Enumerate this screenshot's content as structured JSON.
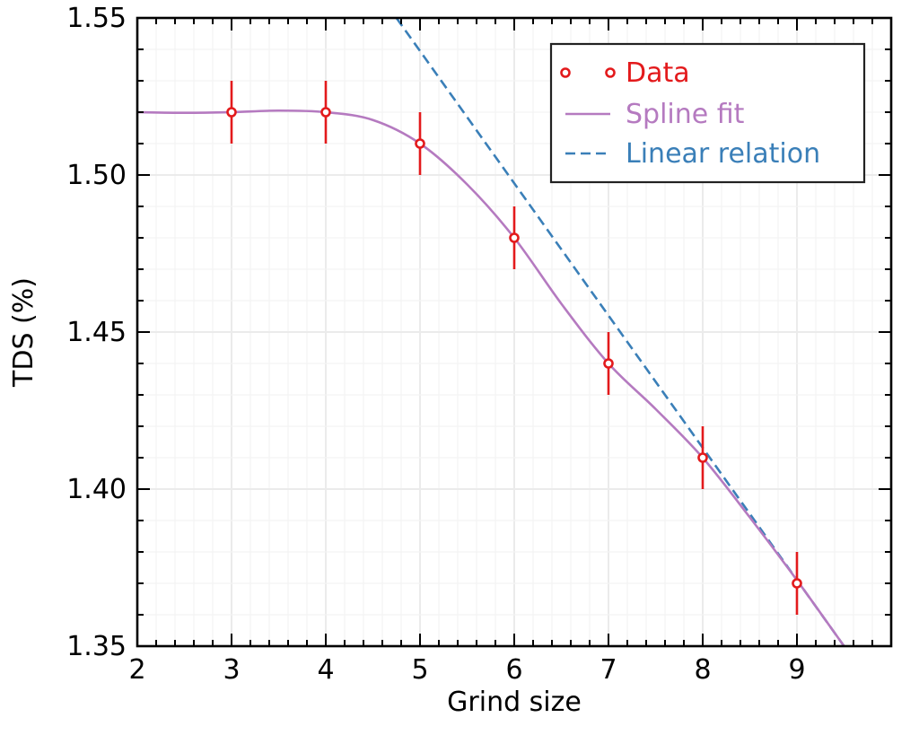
{
  "chart_data": {
    "type": "line",
    "title": "",
    "xlabel": "Grind size",
    "ylabel": "TDS (%)",
    "xlim": [
      2,
      10
    ],
    "ylim": [
      1.35,
      1.55
    ],
    "x_ticks": [
      2,
      3,
      4,
      5,
      6,
      7,
      8,
      9
    ],
    "x_tick_labels": [
      "2",
      "3",
      "4",
      "5",
      "6",
      "7",
      "8",
      "9"
    ],
    "y_ticks": [
      1.35,
      1.4,
      1.45,
      1.5,
      1.55
    ],
    "y_tick_labels": [
      "1.35",
      "1.40",
      "1.45",
      "1.50",
      "1.55"
    ],
    "grid": true,
    "legend_position": "top-right",
    "colors": {
      "data": "#e31a1c",
      "spline": "#b57ac0",
      "linear": "#3a7fb8"
    },
    "series": [
      {
        "name": "Data",
        "kind": "scatter-errorbar",
        "x": [
          3,
          4,
          5,
          6,
          7,
          8,
          9
        ],
        "y": [
          1.52,
          1.52,
          1.51,
          1.48,
          1.44,
          1.41,
          1.37
        ],
        "yerr": [
          0.01,
          0.01,
          0.01,
          0.01,
          0.01,
          0.01,
          0.01
        ]
      },
      {
        "name": "Spline fit",
        "kind": "line",
        "x": [
          2,
          2.5,
          3,
          3.5,
          4,
          4.5,
          5,
          5.5,
          6,
          6.5,
          7,
          7.5,
          8,
          8.5,
          9,
          9.5
        ],
        "y": [
          1.52,
          1.5198,
          1.52,
          1.5205,
          1.52,
          1.5175,
          1.51,
          1.497,
          1.48,
          1.459,
          1.44,
          1.4255,
          1.41,
          1.391,
          1.371,
          1.35
        ]
      },
      {
        "name": "Linear relation",
        "kind": "dashed-line",
        "x": [
          4.75,
          9.5
        ],
        "y": [
          1.55,
          1.35
        ]
      }
    ]
  }
}
